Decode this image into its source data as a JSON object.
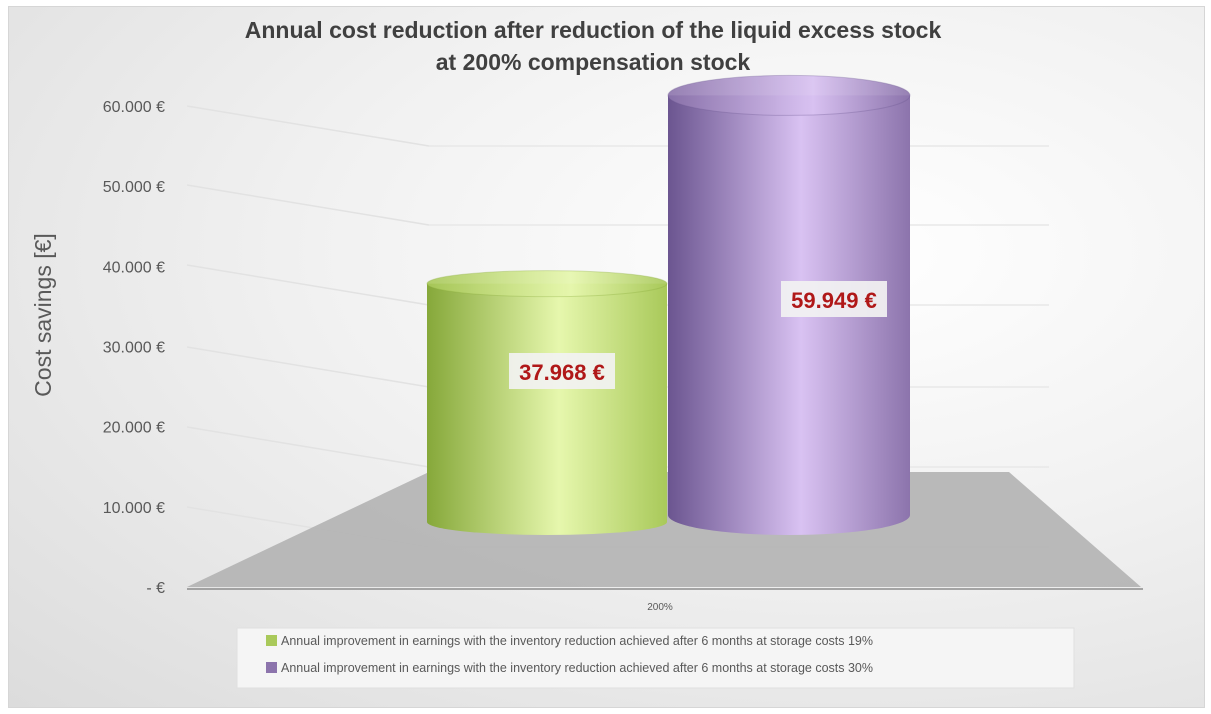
{
  "chart_data": {
    "type": "bar",
    "style": "3d-cylinder",
    "title": [
      "Annual cost reduction after reduction of the liquid excess stock",
      "at 200% compensation stock"
    ],
    "ylabel": "Cost savings [€]",
    "xlabel": "",
    "categories": [
      "200%"
    ],
    "ylim": [
      0,
      60000
    ],
    "yticks": [
      {
        "value": 0,
        "label": "-  €"
      },
      {
        "value": 10000,
        "label": "10.000 €"
      },
      {
        "value": 20000,
        "label": "20.000 €"
      },
      {
        "value": 30000,
        "label": "30.000 €"
      },
      {
        "value": 40000,
        "label": "40.000 €"
      },
      {
        "value": 50000,
        "label": "50.000 €"
      },
      {
        "value": 60000,
        "label": "60.000 €"
      }
    ],
    "grid": true,
    "legend_position": "bottom",
    "series": [
      {
        "name": "Annual improvement in earnings with the inventory reduction achieved after 6 months at storage costs 19%",
        "values": [
          37968
        ],
        "data_label": "37.968 €",
        "color": "#a9c95a",
        "color_light": "#e6f7ad",
        "color_dark": "#86a83a"
      },
      {
        "name": "Annual improvement in earnings with the inventory reduction achieved after 6 months at storage costs 30%",
        "values": [
          59949
        ],
        "data_label": "59.949 €",
        "color": "#8c74ac",
        "color_light": "#d9c2f2",
        "color_dark": "#6b5590"
      }
    ]
  }
}
